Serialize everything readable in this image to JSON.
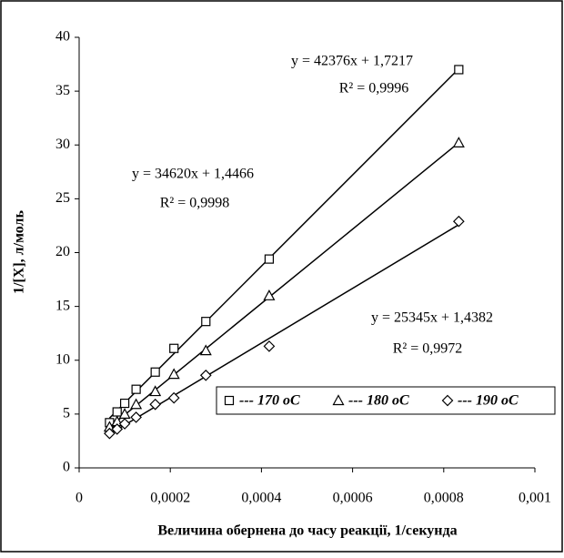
{
  "chart_data": {
    "type": "scatter",
    "x_label": "Величина обернена до часу реакції, 1/секунда",
    "y_label": "1/[X], л/моль",
    "x": [
      0.000833,
      0.000417,
      0.000278,
      0.000208,
      0.000167,
      0.000125,
      0.0001,
      8.33e-05,
      6.67e-05
    ],
    "series": [
      {
        "name": "--- 170 oC",
        "color": "#000000",
        "marker": "square",
        "values": [
          37.0,
          19.4,
          13.6,
          11.1,
          8.9,
          7.3,
          6.0,
          5.2,
          4.2
        ]
      },
      {
        "name": "--- 180 oC",
        "color": "#000000",
        "marker": "triangle",
        "values": [
          30.2,
          16.0,
          10.9,
          8.7,
          7.1,
          5.9,
          5.0,
          4.3,
          3.8
        ]
      },
      {
        "name": "--- 190 oC",
        "color": "#000000",
        "marker": "diamond",
        "values": [
          22.9,
          11.3,
          8.6,
          6.5,
          5.9,
          4.7,
          4.1,
          3.6,
          3.2
        ]
      }
    ],
    "trendline": true,
    "annotations": [
      "y = 42376x + 1,7217",
      "R² = 0,9996",
      "y = 34620x + 1,4466",
      "R² = 0,9998",
      "y = 25345x + 1,4382",
      "R² = 0,9972"
    ],
    "xlim": [
      0,
      0.001
    ],
    "xticks": [
      0,
      {
        "value": 0.0002,
        "label": "0,0002"
      },
      {
        "value": 0.0004,
        "label": "0,0004"
      },
      {
        "value": 0.0006,
        "label": "0,0006"
      },
      {
        "value": 0.0008,
        "label": "0,0008"
      },
      {
        "value": 0.001,
        "label": "0,001"
      }
    ],
    "ylim": [
      0,
      40
    ],
    "yticks": [
      0,
      5,
      10,
      15,
      20,
      25,
      30,
      35,
      40
    ],
    "grid": false,
    "legend": "right"
  }
}
